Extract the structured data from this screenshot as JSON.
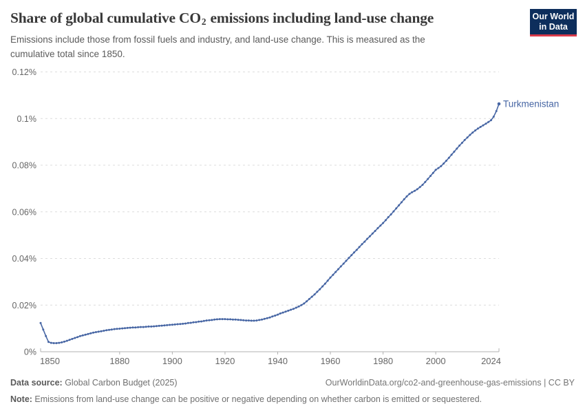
{
  "header": {
    "title_pre": "Share of global cumulative CO",
    "title_sub": "2",
    "title_post": " emissions including land-use change",
    "subtitle": "Emissions include those from fossil fuels and industry, and land-use change. This is measured as the cumulative total since 1850.",
    "logo": {
      "line1": "Our World",
      "line2": "in Data"
    }
  },
  "chart_data": {
    "type": "line",
    "title": "Share of global cumulative CO2 emissions including land-use change",
    "entity": "Turkmenistan",
    "unit": "%",
    "grid": true,
    "legend_position": "end-of-line-label",
    "x": {
      "min": 1850,
      "max": 2024,
      "ticks": [
        {
          "year": 1850,
          "label": "1850"
        },
        {
          "year": 1880,
          "label": "1880"
        },
        {
          "year": 1900,
          "label": "1900"
        },
        {
          "year": 1920,
          "label": "1920"
        },
        {
          "year": 1940,
          "label": "1940"
        },
        {
          "year": 1960,
          "label": "1960"
        },
        {
          "year": 1980,
          "label": "1980"
        },
        {
          "year": 2000,
          "label": "2000"
        },
        {
          "year": 2024,
          "label": "2024"
        }
      ]
    },
    "y": {
      "min": 0,
      "max": 0.12,
      "ticks": [
        {
          "value": 0,
          "label": "0%"
        },
        {
          "value": 0.02,
          "label": "0.02%"
        },
        {
          "value": 0.04,
          "label": "0.04%"
        },
        {
          "value": 0.06,
          "label": "0.06%"
        },
        {
          "value": 0.08,
          "label": "0.08%"
        },
        {
          "value": 0.1,
          "label": "0.1%"
        },
        {
          "value": 0.12,
          "label": "0.12%"
        }
      ]
    },
    "series": [
      {
        "name": "Turkmenistan",
        "start_year": 1850,
        "values": [
          0.0123,
          0.0095,
          0.0067,
          0.0042,
          0.0038,
          0.0037,
          0.0037,
          0.0038,
          0.004,
          0.0043,
          0.0047,
          0.0051,
          0.0055,
          0.0059,
          0.0063,
          0.0067,
          0.007,
          0.0073,
          0.0076,
          0.0079,
          0.0082,
          0.0084,
          0.0086,
          0.0088,
          0.009,
          0.0092,
          0.0094,
          0.0095,
          0.0097,
          0.0098,
          0.0099,
          0.01,
          0.0101,
          0.0102,
          0.0103,
          0.0104,
          0.0104,
          0.0105,
          0.0106,
          0.0106,
          0.0107,
          0.0108,
          0.0108,
          0.0109,
          0.011,
          0.0111,
          0.0112,
          0.0113,
          0.0114,
          0.0115,
          0.0116,
          0.0117,
          0.0118,
          0.0119,
          0.012,
          0.0121,
          0.0123,
          0.0124,
          0.0126,
          0.0127,
          0.0129,
          0.013,
          0.0132,
          0.0134,
          0.0135,
          0.0136,
          0.0138,
          0.0139,
          0.014,
          0.014,
          0.014,
          0.0139,
          0.0139,
          0.0138,
          0.0138,
          0.0137,
          0.0136,
          0.0135,
          0.0134,
          0.0134,
          0.0133,
          0.0133,
          0.0134,
          0.0136,
          0.0138,
          0.0141,
          0.0144,
          0.0147,
          0.0151,
          0.0155,
          0.0159,
          0.0164,
          0.0168,
          0.0172,
          0.0176,
          0.018,
          0.0184,
          0.0189,
          0.0194,
          0.02,
          0.0207,
          0.0216,
          0.0226,
          0.0236,
          0.0246,
          0.0257,
          0.0268,
          0.028,
          0.0292,
          0.0305,
          0.0318,
          0.033,
          0.0342,
          0.0354,
          0.0366,
          0.0378,
          0.039,
          0.0402,
          0.0414,
          0.0426,
          0.0437,
          0.0449,
          0.0461,
          0.0472,
          0.0484,
          0.0495,
          0.0507,
          0.0518,
          0.053,
          0.0541,
          0.0552,
          0.0564,
          0.0577,
          0.0589,
          0.0602,
          0.0615,
          0.0628,
          0.0641,
          0.0654,
          0.0666,
          0.0677,
          0.0684,
          0.069,
          0.0697,
          0.0706,
          0.0716,
          0.0728,
          0.0741,
          0.0754,
          0.0767,
          0.078,
          0.0788,
          0.0796,
          0.0807,
          0.0819,
          0.0832,
          0.0845,
          0.0858,
          0.0871,
          0.0884,
          0.0896,
          0.0908,
          0.0919,
          0.093,
          0.094,
          0.0949,
          0.0957,
          0.0964,
          0.0971,
          0.0978,
          0.0985,
          0.0993,
          0.1008,
          0.1032,
          0.1063
        ]
      }
    ],
    "colors": {
      "line": "#4766a4",
      "grid": "#dcdcdc",
      "axis": "#b0b0b0",
      "tick_text": "#666666"
    }
  },
  "footer": {
    "source_label": "Data source:",
    "source_value": " Global Carbon Budget (2025)",
    "citation": "OurWorldinData.org/co2-and-greenhouse-gas-emissions | CC BY",
    "note_label": "Note:",
    "note_value": " Emissions from land-use change can be positive or negative depending on whether carbon is emitted or sequestered."
  }
}
